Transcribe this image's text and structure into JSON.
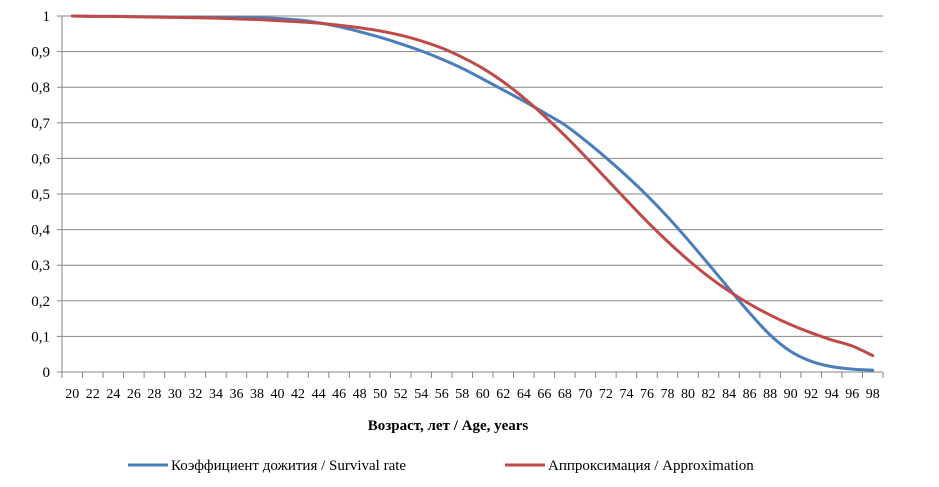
{
  "chart_data": {
    "type": "line",
    "xlabel": "Возраст, лет / Age, years",
    "ylabel": "",
    "ylim": [
      0,
      1
    ],
    "yticks": [
      "0",
      "0,1",
      "0,2",
      "0,3",
      "0,4",
      "0,5",
      "0,6",
      "0,7",
      "0,8",
      "0,9",
      "1"
    ],
    "x": [
      20,
      22,
      24,
      26,
      28,
      30,
      32,
      34,
      36,
      38,
      40,
      42,
      44,
      46,
      48,
      50,
      52,
      54,
      56,
      58,
      60,
      62,
      64,
      66,
      68,
      70,
      72,
      74,
      76,
      78,
      80,
      82,
      84,
      86,
      88,
      90,
      92,
      94,
      96,
      98
    ],
    "grid": "horizontal",
    "legend_position": "bottom",
    "series": [
      {
        "name": "Коэффициент дожития / Survival rate",
        "color": "#4a7ebb",
        "values": [
          1.0,
          0.999,
          0.999,
          0.998,
          0.998,
          0.997,
          0.997,
          0.996,
          0.996,
          0.995,
          0.993,
          0.989,
          0.981,
          0.97,
          0.956,
          0.94,
          0.922,
          0.902,
          0.879,
          0.853,
          0.823,
          0.792,
          0.761,
          0.728,
          0.694,
          0.65,
          0.602,
          0.551,
          0.496,
          0.436,
          0.371,
          0.303,
          0.234,
          0.166,
          0.104,
          0.058,
          0.03,
          0.015,
          0.008,
          0.005
        ]
      },
      {
        "name": "Аппроксимация / Approximation",
        "color": "#be4b48",
        "values": [
          1.0,
          0.999,
          0.999,
          0.998,
          0.997,
          0.996,
          0.995,
          0.994,
          0.992,
          0.99,
          0.987,
          0.984,
          0.98,
          0.974,
          0.967,
          0.958,
          0.946,
          0.93,
          0.91,
          0.884,
          0.853,
          0.815,
          0.77,
          0.719,
          0.664,
          0.605,
          0.544,
          0.483,
          0.423,
          0.367,
          0.315,
          0.268,
          0.227,
          0.191,
          0.16,
          0.133,
          0.11,
          0.09,
          0.073,
          0.046
        ]
      }
    ]
  }
}
